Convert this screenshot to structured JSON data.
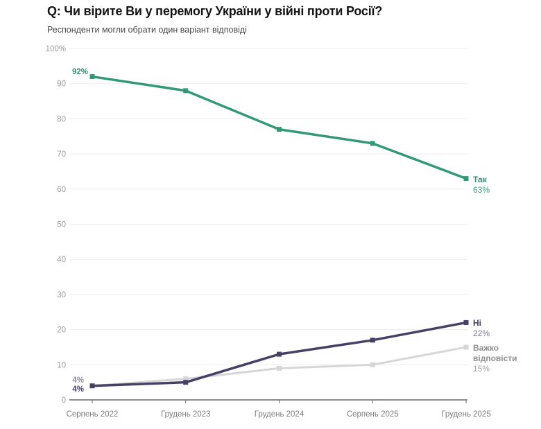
{
  "header": {
    "title": "Q: Чи вірите Ви у перемогу України у війні проти Росії?",
    "subtitle": "Респонденти могли обрати один варіант відповіді"
  },
  "chart_data": {
    "type": "line",
    "title": "Q: Чи вірите Ви у перемогу України у війні проти Росії?",
    "subtitle": "Респонденти могли обрати один варіант відповіді",
    "categories": [
      "Серпень 2022",
      "Грудень 2023",
      "Грудень 2024",
      "Серпень 2025",
      "Грудень 2025"
    ],
    "series": [
      {
        "name": "Так",
        "values": [
          92,
          88,
          77,
          73,
          63
        ],
        "color": "#339878",
        "name_color": "#2e8f70",
        "value_color": "#3a9a7c",
        "start_label": "92%",
        "start_label_color": "#2e8f70",
        "end_label": "63%"
      },
      {
        "name": "Ні",
        "values": [
          4,
          5,
          13,
          17,
          22
        ],
        "color": "#454166",
        "name_color": "#413c5e",
        "value_color": "#7b7890",
        "start_label": "4%",
        "start_label_color": "#4a4568",
        "end_label": "22%"
      },
      {
        "name": "Важко відповісти",
        "values": [
          4,
          6,
          9,
          10,
          15
        ],
        "color": "#d6d6d6",
        "name_color": "#8f8f8f",
        "value_color": "#a3a3a3",
        "start_label": "4%",
        "start_label_color": "#94929c",
        "end_label": "15%"
      }
    ],
    "xlabel": "",
    "ylabel": "",
    "ylim": [
      0,
      100
    ],
    "y_ticks": [
      "100%",
      "90",
      "80",
      "70",
      "60",
      "50",
      "40",
      "30",
      "20",
      "10",
      "0"
    ],
    "grid": "horizontal",
    "legend_position": "right of line ends"
  },
  "colors": {
    "grid": "#ededed",
    "axis": "#666666",
    "y_tick_label": "#9b9b9b",
    "x_tick_label": "#7d7d7d"
  }
}
